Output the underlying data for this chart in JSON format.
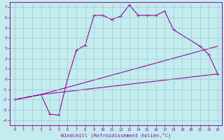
{
  "xlabel": "Windchill (Refroidissement éolien,°C)",
  "bg_color": "#c2ecee",
  "line_color": "#990099",
  "grid_color": "#9bbfcc",
  "xlim": [
    -0.5,
    23.5
  ],
  "ylim": [
    -4.5,
    7.5
  ],
  "xticks": [
    0,
    1,
    2,
    3,
    4,
    5,
    6,
    7,
    8,
    9,
    10,
    11,
    12,
    13,
    14,
    15,
    16,
    17,
    18,
    19,
    20,
    21,
    22,
    23
  ],
  "yticks": [
    -4,
    -3,
    -2,
    -1,
    0,
    1,
    2,
    3,
    4,
    5,
    6,
    7
  ],
  "line1_x": [
    0,
    3,
    4,
    5,
    6,
    7,
    8,
    9,
    10,
    11,
    12,
    13,
    14,
    15,
    16,
    17,
    18,
    21,
    22,
    23
  ],
  "line1_y": [
    -2.0,
    -1.5,
    -3.4,
    -3.5,
    0.0,
    2.8,
    3.3,
    6.2,
    6.2,
    5.8,
    6.1,
    7.2,
    6.2,
    6.2,
    6.2,
    6.6,
    4.8,
    3.2,
    2.4,
    0.5
  ],
  "line2_x": [
    0,
    3,
    23
  ],
  "line2_y": [
    -2.0,
    -1.5,
    0.5
  ],
  "line3_x": [
    0,
    3,
    23
  ],
  "line3_y": [
    -2.0,
    -1.5,
    3.2
  ]
}
